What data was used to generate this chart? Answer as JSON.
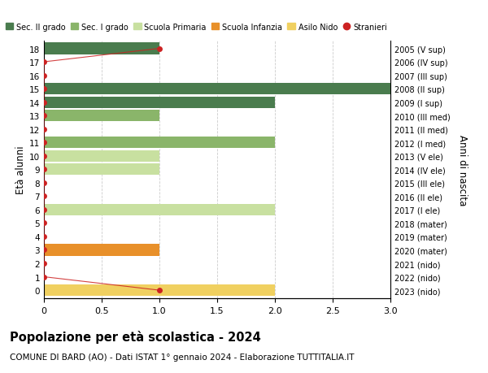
{
  "ages": [
    18,
    17,
    16,
    15,
    14,
    13,
    12,
    11,
    10,
    9,
    8,
    7,
    6,
    5,
    4,
    3,
    2,
    1,
    0
  ],
  "right_labels": [
    "2005 (V sup)",
    "2006 (IV sup)",
    "2007 (III sup)",
    "2008 (II sup)",
    "2009 (I sup)",
    "2010 (III med)",
    "2011 (II med)",
    "2012 (I med)",
    "2013 (V ele)",
    "2014 (IV ele)",
    "2015 (III ele)",
    "2016 (II ele)",
    "2017 (I ele)",
    "2018 (mater)",
    "2019 (mater)",
    "2020 (mater)",
    "2021 (nido)",
    "2022 (nido)",
    "2023 (nido)"
  ],
  "bar_values": [
    1,
    0,
    0,
    3,
    2,
    1,
    0,
    2,
    1,
    1,
    0,
    0,
    2,
    0,
    0,
    1,
    0,
    0,
    2
  ],
  "bar_colors": [
    "#4a7c4e",
    "#4a7c4e",
    "#4a7c4e",
    "#4a7c4e",
    "#4a7c4e",
    "#8ab56a",
    "#8ab56a",
    "#8ab56a",
    "#c8e0a0",
    "#c8e0a0",
    "#c8e0a0",
    "#c8e0a0",
    "#c8e0a0",
    "#e8902a",
    "#e8902a",
    "#e8902a",
    "#f0d060",
    "#f0d060",
    "#f0d060"
  ],
  "stranieri_line_ages": [
    18,
    17,
    16,
    15,
    14,
    13,
    12,
    11,
    10,
    9,
    8,
    7,
    6,
    5,
    4,
    3,
    2,
    1,
    0
  ],
  "stranieri_line_x": [
    1,
    0,
    0,
    0,
    0,
    0,
    0,
    0,
    0,
    0,
    0,
    0,
    0,
    0,
    0,
    0,
    0,
    0,
    1
  ],
  "stranieri_dots_ages": [
    18,
    17,
    16,
    15,
    14,
    13,
    12,
    11,
    10,
    9,
    8,
    7,
    6,
    5,
    4,
    3,
    2,
    1,
    0
  ],
  "stranieri_dots_x": [
    1,
    0,
    0,
    0,
    0,
    0,
    0,
    0,
    0,
    0,
    0,
    0,
    0,
    0,
    0,
    0,
    0,
    0,
    1
  ],
  "legend_labels": [
    "Sec. II grado",
    "Sec. I grado",
    "Scuola Primaria",
    "Scuola Infanzia",
    "Asilo Nido",
    "Stranieri"
  ],
  "legend_colors": [
    "#4a7c4e",
    "#8ab56a",
    "#c8e0a0",
    "#e8902a",
    "#f0d060",
    "#cc2222"
  ],
  "title": "Popolazione per età scolastica - 2024",
  "subtitle": "COMUNE DI BARD (AO) - Dati ISTAT 1° gennaio 2024 - Elaborazione TUTTITALIA.IT",
  "ylabel_left": "Età alunni",
  "ylabel_right": "Anni di nascita",
  "xlim": [
    0,
    3.0
  ],
  "bar_height": 0.85,
  "background_color": "#ffffff",
  "grid_color": "#cccccc",
  "stranieri_color": "#cc2222",
  "stranieri_dot_size": 25
}
